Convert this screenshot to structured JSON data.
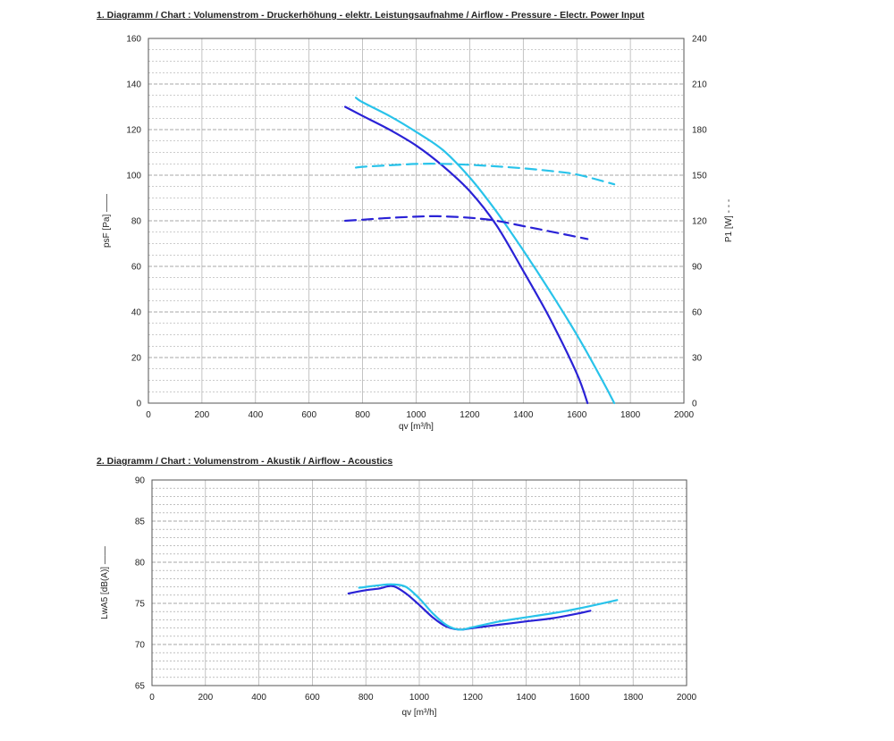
{
  "chart_data": [
    {
      "type": "line",
      "title": "1. Diagramm / Chart :   Volumenstrom - Druckerhöhung - elektr. Leistungsaufnahme / Airflow - Pressure - Electr. Power Input",
      "xlabel": "qv [m³/h]",
      "ylabel": "psF [Pa]",
      "y2label": "P1 [W]",
      "xlim": [
        0,
        2000
      ],
      "ylim": [
        0,
        160
      ],
      "y2lim": [
        0,
        240
      ],
      "xticks": [
        "0",
        "200",
        "400",
        "600",
        "800",
        "1000",
        "1200",
        "1400",
        "1600",
        "1800",
        "2000"
      ],
      "yticks": [
        "0",
        "20",
        "40",
        "60",
        "80",
        "100",
        "120",
        "140",
        "160"
      ],
      "y2ticks": [
        "0",
        "30",
        "60",
        "90",
        "120",
        "150",
        "180",
        "210",
        "240"
      ],
      "grid": true,
      "series": [
        {
          "axis": "left",
          "style": "solid",
          "color": "#2a22d6",
          "x": [
            735,
            800,
            900,
            1000,
            1100,
            1200,
            1300,
            1400,
            1500,
            1600,
            1640
          ],
          "y": [
            130,
            126,
            120,
            113,
            104,
            93,
            78,
            58,
            37,
            13,
            0
          ]
        },
        {
          "axis": "left",
          "style": "solid",
          "color": "#29c3ea",
          "x": [
            775,
            800,
            900,
            1000,
            1100,
            1200,
            1300,
            1400,
            1500,
            1600,
            1700,
            1740
          ],
          "y": [
            134,
            132,
            126,
            119,
            111,
            99,
            84,
            67,
            49,
            30,
            9,
            0
          ]
        },
        {
          "axis": "right",
          "style": "dashed",
          "color": "#2a22d6",
          "x": [
            735,
            800,
            900,
            1000,
            1080,
            1200,
            1300,
            1400,
            1500,
            1640
          ],
          "y": [
            120,
            120.7,
            121.9,
            122.7,
            123,
            122,
            120,
            116.5,
            113,
            108
          ]
        },
        {
          "axis": "right",
          "style": "dashed",
          "color": "#29c3ea",
          "x": [
            775,
            800,
            900,
            1000,
            1100,
            1200,
            1300,
            1400,
            1500,
            1600,
            1740
          ],
          "y": [
            155,
            155.5,
            156.5,
            157.4,
            157.5,
            156.8,
            155.8,
            154.5,
            152.8,
            150.5,
            144
          ]
        }
      ]
    },
    {
      "type": "line",
      "title": "2. Diagramm / Chart :   Volumenstrom - Akustik / Airflow - Acoustics",
      "xlabel": "qv [m³/h]",
      "ylabel": "LwA5 [dB(A)]",
      "xlim": [
        0,
        2000
      ],
      "ylim": [
        65,
        90
      ],
      "xticks": [
        "0",
        "200",
        "400",
        "600",
        "800",
        "1000",
        "1200",
        "1400",
        "1600",
        "1800",
        "2000"
      ],
      "yticks": [
        "65",
        "70",
        "75",
        "80",
        "85",
        "90"
      ],
      "grid": true,
      "series": [
        {
          "style": "solid",
          "color": "#2a22d6",
          "x": [
            735,
            800,
            850,
            900,
            950,
            1000,
            1050,
            1100,
            1150,
            1200,
            1300,
            1400,
            1500,
            1600,
            1640
          ],
          "y": [
            76.2,
            76.6,
            76.8,
            77.1,
            76.2,
            74.8,
            73.3,
            72.2,
            71.8,
            72.0,
            72.4,
            72.8,
            73.2,
            73.8,
            74.1
          ]
        },
        {
          "style": "solid",
          "color": "#29c3ea",
          "x": [
            775,
            800,
            850,
            900,
            950,
            1000,
            1050,
            1100,
            1150,
            1200,
            1300,
            1400,
            1500,
            1600,
            1740
          ],
          "y": [
            76.9,
            77.0,
            77.2,
            77.3,
            77.0,
            75.6,
            73.8,
            72.4,
            71.8,
            72.1,
            72.8,
            73.3,
            73.8,
            74.4,
            75.4
          ]
        }
      ]
    }
  ]
}
